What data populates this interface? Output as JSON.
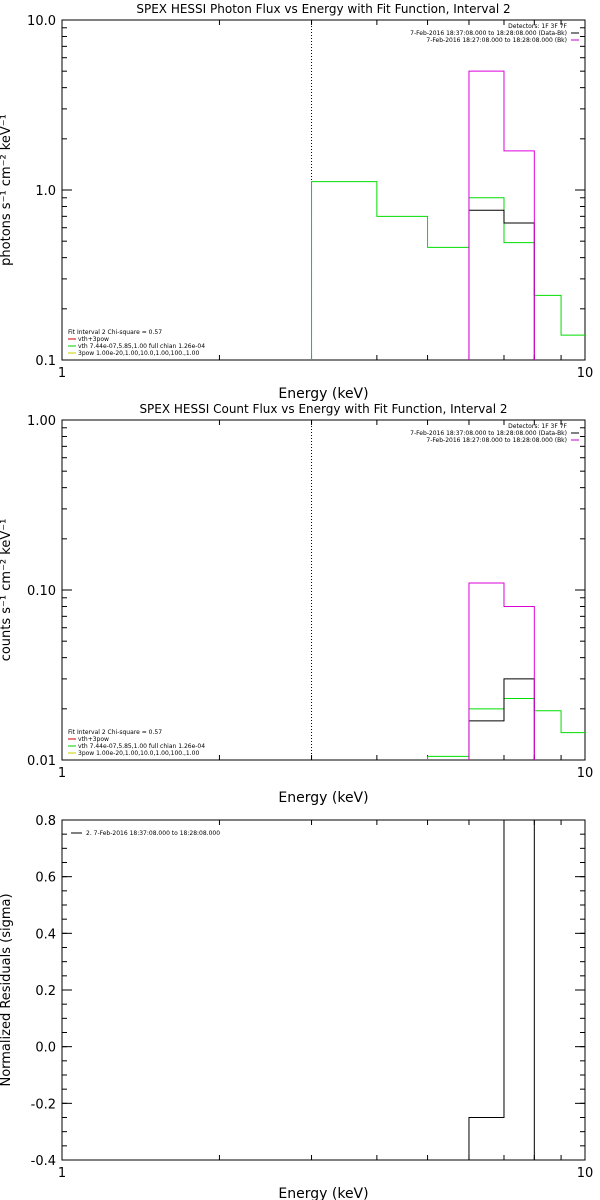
{
  "chart_data": [
    {
      "type": "line",
      "step": true,
      "title": "SPEX HESSI Photon Flux vs Energy with Fit Function, Interval 2",
      "xlabel": "Energy (keV)",
      "ylabel": "photons s⁻¹ cm⁻² keV⁻¹",
      "xscale": "log",
      "yscale": "log",
      "xlim": [
        1,
        10
      ],
      "ylim": [
        0.1,
        10
      ],
      "xticks": [
        {
          "v": 1,
          "label": "1"
        },
        {
          "v": 10,
          "label": "10"
        }
      ],
      "yticks": [
        {
          "v": 0.1,
          "label": "0.1"
        },
        {
          "v": 1,
          "label": "1.0"
        },
        {
          "v": 10,
          "label": "10.0"
        }
      ],
      "vline": 3,
      "top_info": [
        "Detectors: 1F 3F 7F",
        "7-Feb-2016 18:37:08.000 to 18:28:08.000 (Data-Bk)",
        "7-Feb-2016 18:27:08.000 to 18:28:08.000 (Bk)"
      ],
      "top_info_colors": [
        "",
        "#000000",
        "#cc00cc"
      ],
      "fit_info": [
        "Fit Interval 2   Chi-square = 0.57",
        "vth+3pow",
        "vth 7.44e-07,5.85,1.00  full chian 1.26e-04",
        "3pow 1.00e-20,1.00,10.0,1.00,100.,1.00"
      ],
      "fit_info_colors": [
        "",
        "#cc0000",
        "#00cc00",
        "#cccc00"
      ],
      "series": [
        {
          "color": "#00dd00",
          "bins": [
            [
              3,
              4,
              1.12
            ],
            [
              4,
              5,
              0.7
            ],
            [
              5,
              6,
              0.46
            ],
            [
              6,
              7,
              0.9
            ],
            [
              7,
              8,
              0.49
            ],
            [
              8,
              9,
              0.24
            ],
            [
              9,
              10,
              0.14
            ]
          ]
        },
        {
          "color": "#000000",
          "bins": [
            [
              6,
              7,
              0.76
            ],
            [
              7,
              8,
              0.64
            ]
          ]
        },
        {
          "color": "#dd00dd",
          "bins": [
            [
              6,
              7,
              5.0
            ],
            [
              7,
              8,
              1.7
            ]
          ]
        }
      ]
    },
    {
      "type": "line",
      "step": true,
      "title": "SPEX HESSI Count Flux vs Energy with Fit Function, Interval 2",
      "xlabel": "Energy (keV)",
      "ylabel": "counts s⁻¹ cm⁻² keV⁻¹",
      "xscale": "log",
      "yscale": "log",
      "xlim": [
        1,
        10
      ],
      "ylim": [
        0.01,
        1
      ],
      "xticks": [
        {
          "v": 1,
          "label": "1"
        },
        {
          "v": 10,
          "label": "10"
        }
      ],
      "yticks": [
        {
          "v": 0.01,
          "label": "0.01"
        },
        {
          "v": 0.1,
          "label": "0.10"
        },
        {
          "v": 1,
          "label": "1.00"
        }
      ],
      "vline": 3,
      "top_info": [
        "Detectors: 1F 3F 7F",
        "7-Feb-2016 18:37:08.000 to 18:28:08.000 (Data-Bk)",
        "7-Feb-2016 18:27:08.000 to 18:28:08.000 (Bk)"
      ],
      "top_info_colors": [
        "",
        "#000000",
        "#cc00cc"
      ],
      "fit_info": [
        "Fit Interval 2   Chi-square = 0.57",
        "vth+3pow",
        "vth 7.44e-07,5.85,1.00  full chian 1.26e-04",
        "3pow 1.00e-20,1.00,10.0,1.00,100.,1.00"
      ],
      "fit_info_colors": [
        "",
        "#cc0000",
        "#00cc00",
        "#cccc00"
      ],
      "series": [
        {
          "color": "#00dd00",
          "bins": [
            [
              5,
              6,
              0.0105
            ],
            [
              6,
              7,
              0.02
            ],
            [
              7,
              8,
              0.023
            ],
            [
              8,
              9,
              0.0195
            ],
            [
              9,
              10,
              0.0145
            ]
          ]
        },
        {
          "color": "#000000",
          "bins": [
            [
              6,
              7,
              0.017
            ],
            [
              7,
              8,
              0.03
            ]
          ]
        },
        {
          "color": "#dd00dd",
          "bins": [
            [
              6,
              7,
              0.11
            ],
            [
              7,
              8,
              0.08
            ]
          ]
        }
      ]
    },
    {
      "type": "line",
      "step": true,
      "title": "",
      "xlabel": "Energy (keV)",
      "ylabel": "Normalized Residuals (sigma)",
      "xscale": "log",
      "yscale": "linear",
      "xlim": [
        1,
        10
      ],
      "ylim": [
        -0.4,
        0.8
      ],
      "xticks": [
        {
          "v": 1,
          "label": "1"
        },
        {
          "v": 10,
          "label": "10"
        }
      ],
      "yticks": [
        {
          "v": -0.4,
          "label": "-0.4"
        },
        {
          "v": -0.2,
          "label": "-0.2"
        },
        {
          "v": 0,
          "label": "0.0"
        },
        {
          "v": 0.2,
          "label": "0.2"
        },
        {
          "v": 0.4,
          "label": "0.4"
        },
        {
          "v": 0.6,
          "label": "0.6"
        },
        {
          "v": 0.8,
          "label": "0.8"
        }
      ],
      "legend": "2.  7-Feb-2016 18:37:08.000 to 18:28:08.000",
      "series": [
        {
          "color": "#000000",
          "bins": [
            [
              6,
              7,
              -0.25
            ],
            [
              7,
              8,
              0.8
            ]
          ]
        }
      ]
    }
  ]
}
